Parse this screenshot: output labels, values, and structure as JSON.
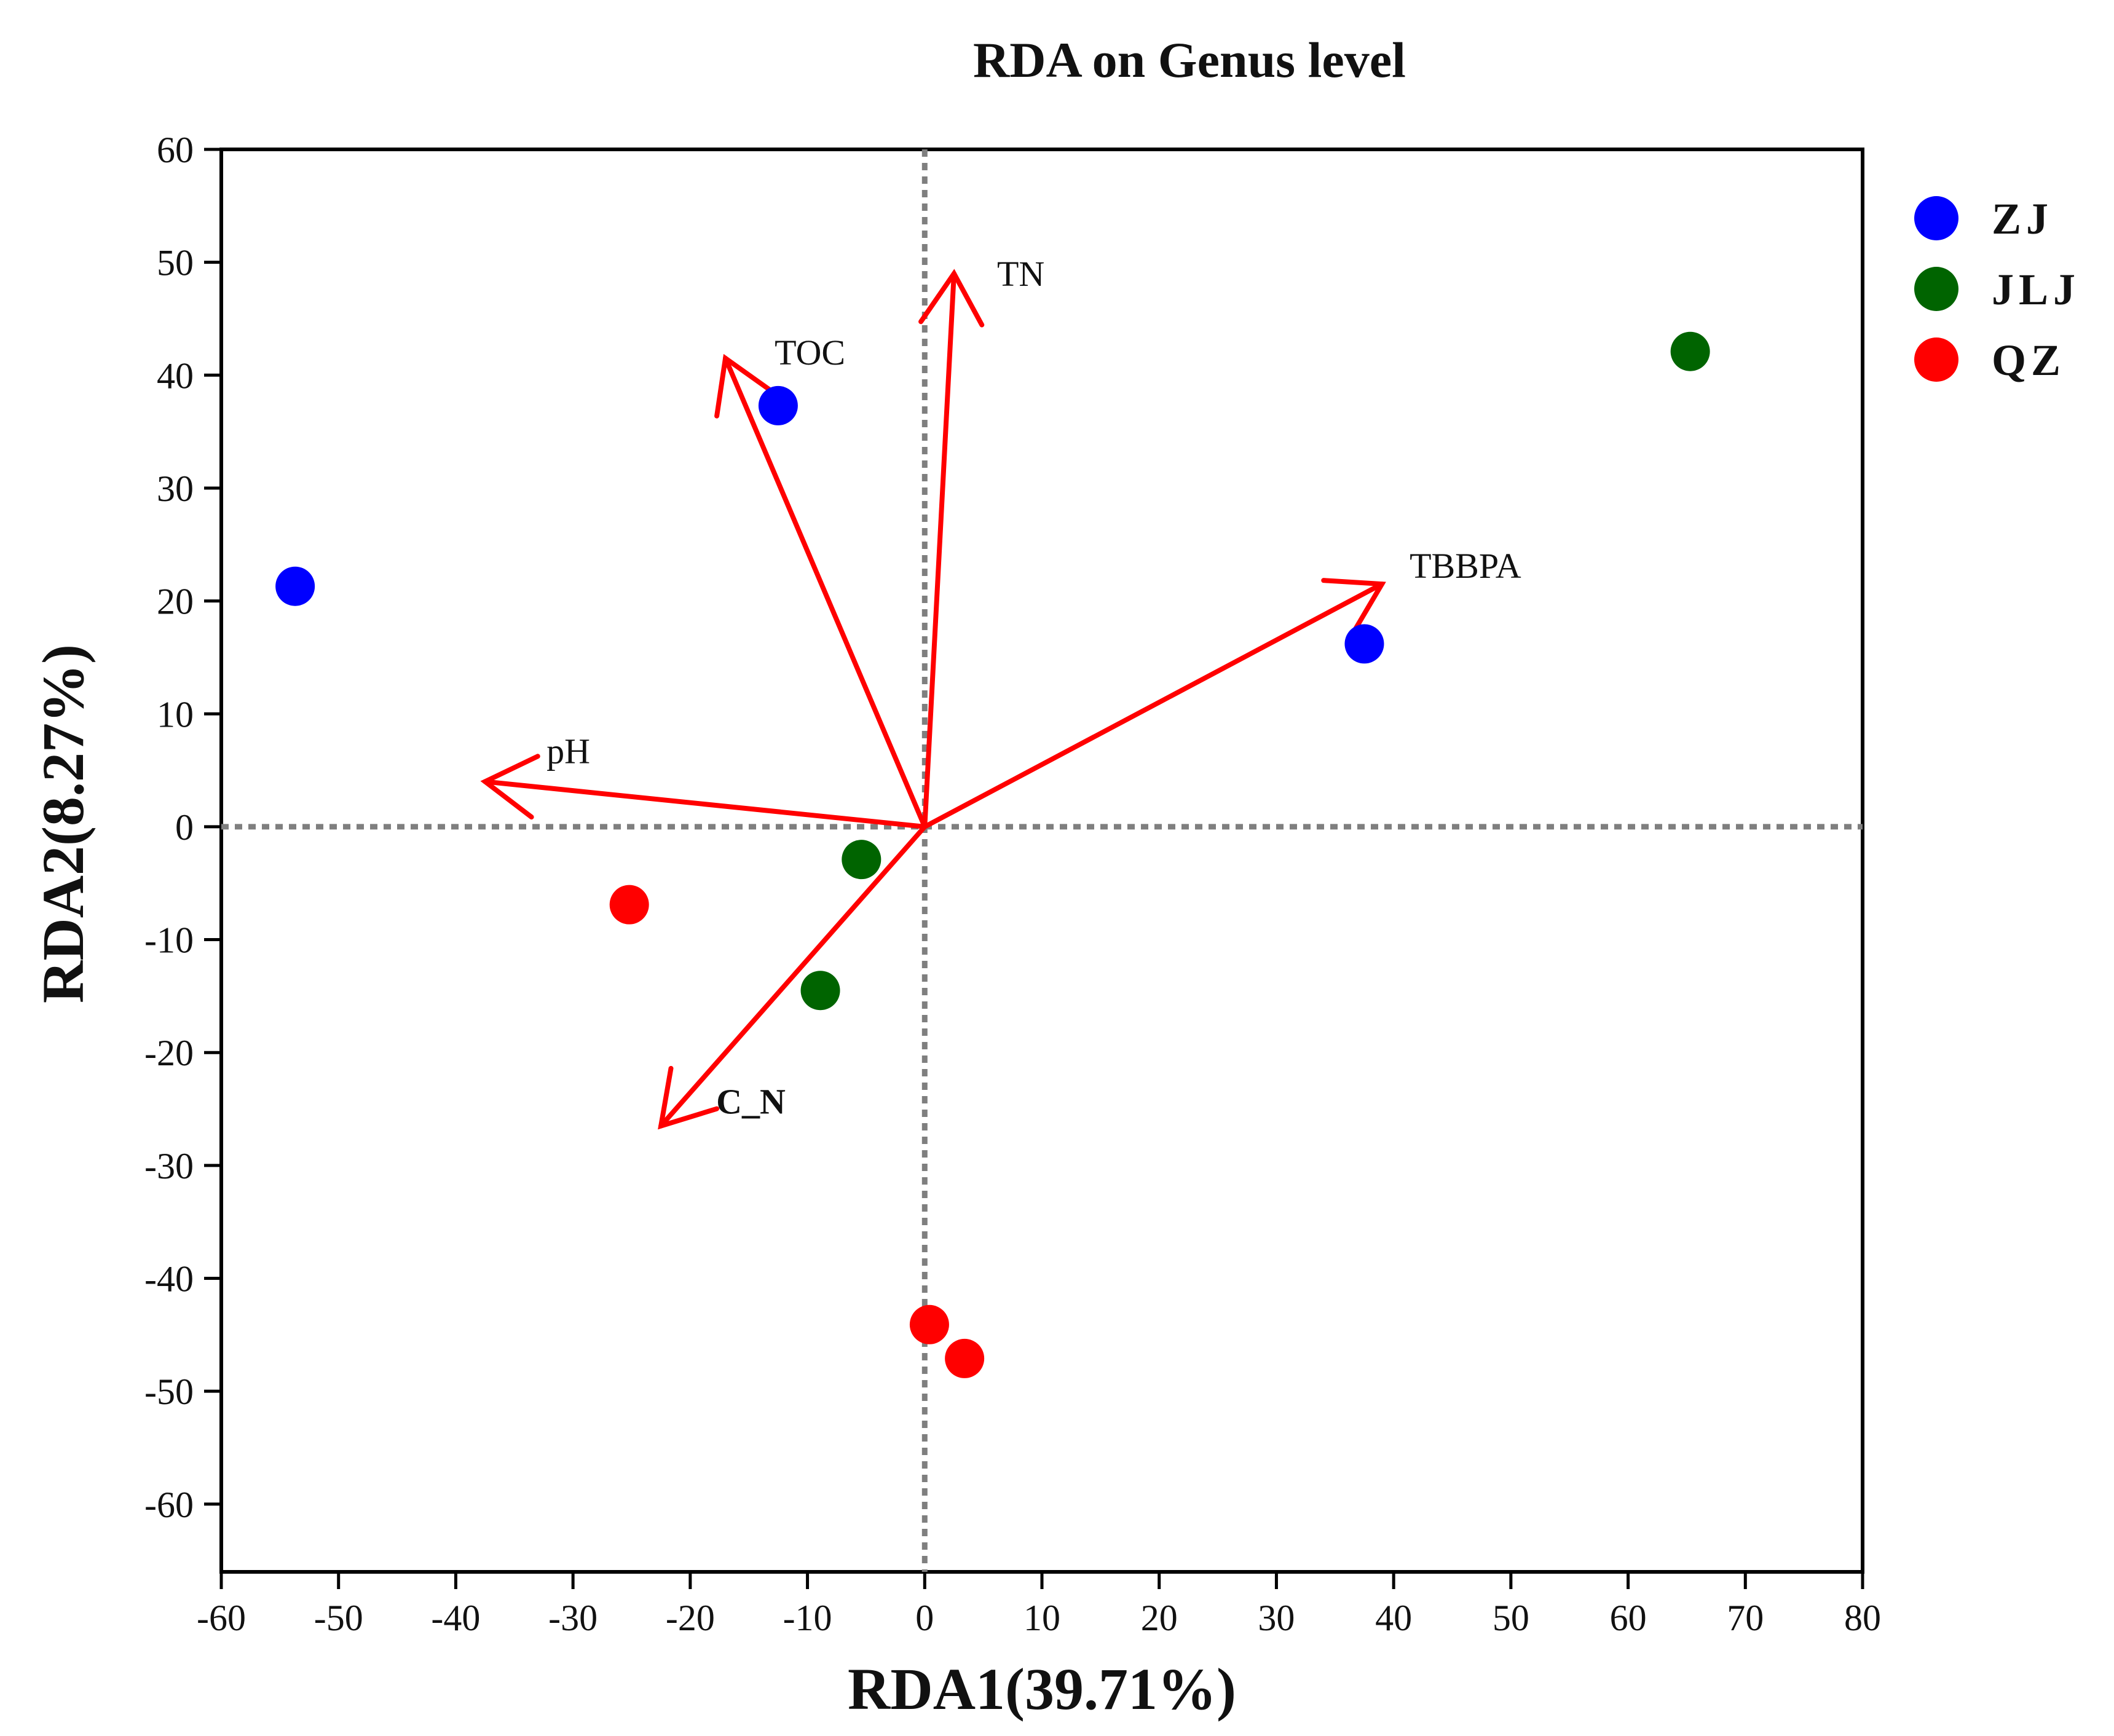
{
  "chart_data": {
    "type": "scatter",
    "title": "RDA on Genus level",
    "xlabel": "RDA1(39.71%)",
    "ylabel": "RDA2(8.27%)",
    "xlim": [
      -60,
      80
    ],
    "ylim": [
      -66,
      60
    ],
    "xticks": [
      -60,
      -50,
      -40,
      -30,
      -20,
      -10,
      0,
      10,
      20,
      30,
      40,
      50,
      60,
      70,
      80
    ],
    "yticks": [
      60,
      50,
      40,
      30,
      20,
      10,
      0,
      -10,
      -20,
      -30,
      -40,
      -50,
      -60
    ],
    "grid": false,
    "reference_lines": [
      {
        "axis": "x",
        "value": 0,
        "style": "dotted"
      },
      {
        "axis": "y",
        "value": 0,
        "style": "dotted"
      }
    ],
    "legend": {
      "placement": "top-right, outside plot"
    },
    "series": [
      {
        "name": "ZJ",
        "color": "#0000ff",
        "points": [
          [
            -53.7,
            21.3
          ],
          [
            -12.5,
            37.3
          ],
          [
            37.5,
            16.2
          ]
        ]
      },
      {
        "name": "JLJ",
        "color": "#006400",
        "points": [
          [
            65.3,
            42.1
          ],
          [
            -5.4,
            -2.9
          ],
          [
            -8.9,
            -14.5
          ]
        ]
      },
      {
        "name": "QZ",
        "color": "#ff0000",
        "points": [
          [
            -25.2,
            -6.9
          ],
          [
            0.4,
            -44.1
          ],
          [
            3.4,
            -47.1
          ]
        ]
      }
    ],
    "vectors": [
      {
        "name": "TN",
        "x": 2.5,
        "y": 49.0,
        "bold": false
      },
      {
        "name": "TOC",
        "x": -17.0,
        "y": 41.5,
        "bold": false
      },
      {
        "name": "TBBPA",
        "x": 39.0,
        "y": 21.5,
        "bold": false
      },
      {
        "name": "pH",
        "x": -37.5,
        "y": 4.0,
        "bold": false
      },
      {
        "name": "C_N",
        "x": -22.5,
        "y": -26.5,
        "bold": true
      }
    ],
    "vector_color": "#ff0000"
  }
}
